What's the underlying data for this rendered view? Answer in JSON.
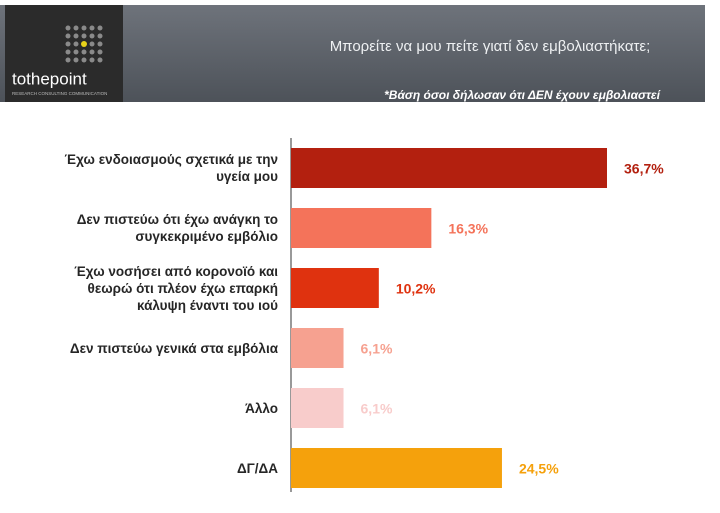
{
  "logo": {
    "brand": "tothepoint",
    "tagline": "RESEARCH CONSULTING COMMUNICATION"
  },
  "chart_data": {
    "type": "bar",
    "orientation": "horizontal",
    "title": "Μπορείτε να μου πείτε γιατί δεν εμβολιαστήκατε;",
    "subtitle": "*Βάση όσοι δήλωσαν ότι ΔΕΝ έχουν εμβολιαστεί",
    "categories": [
      "Έχω ενδοιασμούς σχετικά με την\nυγεία μου",
      "Δεν πιστεύω ότι έχω ανάγκη το\nσυγκεκριμένο εμβόλιο",
      "Έχω νοσήσει από κορονοϊό και\nθεωρώ ότι πλέον έχω επαρκή\nκάλυψη έναντι του ιού",
      "Δεν πιστεύω γενικά στα εμβόλια",
      "Άλλο",
      "ΔΓ/ΔΑ"
    ],
    "values": [
      36.7,
      16.3,
      10.2,
      6.1,
      6.1,
      24.5
    ],
    "value_labels": [
      "36,7%",
      "16,3%",
      "10,2%",
      "6,1%",
      "6,1%",
      "24,5%"
    ],
    "colors": [
      "#b3200f",
      "#f4735a",
      "#df320f",
      "#f6a190",
      "#f8cccb",
      "#f5a10c"
    ]
  }
}
